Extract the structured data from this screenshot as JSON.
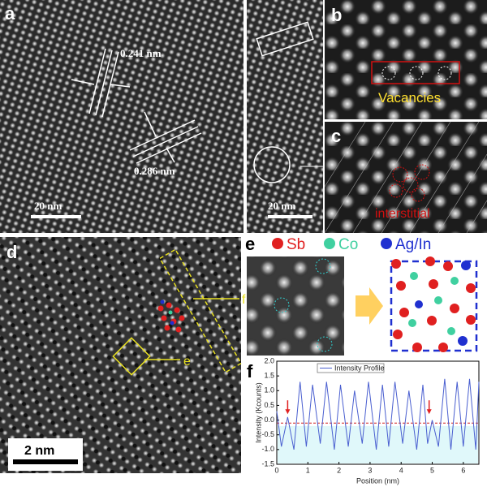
{
  "panels": {
    "a": {
      "label": "a",
      "spacing_1": "0.241 nm",
      "spacing_2": "0.286 nm",
      "scale": "20 nm"
    },
    "b": {
      "label": "b",
      "note": "Vacancies",
      "scale": "20 nm"
    },
    "c": {
      "label": "c",
      "note": "interstitial"
    },
    "d": {
      "label": "d",
      "pointer_f": "f",
      "pointer_e": "e",
      "scale": "2 nm"
    },
    "e": {
      "label": "e",
      "legend": [
        "Sb",
        "Co",
        "Ag/In"
      ]
    },
    "f": {
      "label": "f"
    }
  },
  "chart_data": {
    "type": "line",
    "xlabel": "Position (nm)",
    "ylabel": "Intensity (Kcounts)",
    "series": [
      {
        "name": "Intensity Profile",
        "color": "#4a5fd0",
        "x": [
          0,
          0.15,
          0.35,
          0.55,
          0.75,
          0.95,
          1.15,
          1.4,
          1.6,
          1.85,
          2.05,
          2.3,
          2.5,
          2.75,
          2.95,
          3.2,
          3.4,
          3.6,
          3.8,
          4.05,
          4.25,
          4.5,
          4.7,
          4.85,
          5.0,
          5.2,
          5.4,
          5.6,
          5.8,
          6.0,
          6.2,
          6.4,
          6.5
        ],
        "values": [
          0.3,
          -0.9,
          0.1,
          -1.0,
          1.3,
          -0.9,
          1.2,
          -0.8,
          1.3,
          -1.0,
          1.2,
          -0.9,
          1.0,
          -0.8,
          1.3,
          -1.0,
          1.2,
          -0.9,
          1.3,
          -0.8,
          1.0,
          -1.0,
          1.2,
          -0.8,
          0.0,
          -0.9,
          1.4,
          -1.0,
          1.3,
          -0.9,
          1.4,
          -1.0,
          1.3
        ]
      }
    ],
    "reference_line": -0.1,
    "reference_color": "#d02020",
    "vacancy_arrows_x": [
      0.35,
      4.9
    ],
    "xlim": [
      0,
      6.5
    ],
    "xticks": [
      0,
      1,
      2,
      3,
      4,
      5,
      6
    ],
    "ylim": [
      -1.5,
      2.0
    ],
    "yticks": [
      -1.5,
      {
        "value": -1.0,
        "label": "-1.0"
      },
      -0.5,
      {
        "value": 0.0,
        "label": "0.0"
      },
      0.5,
      {
        "value": 1.0,
        "label": "1.0"
      },
      1.5,
      {
        "value": 2.0,
        "label": "2.0"
      }
    ]
  }
}
